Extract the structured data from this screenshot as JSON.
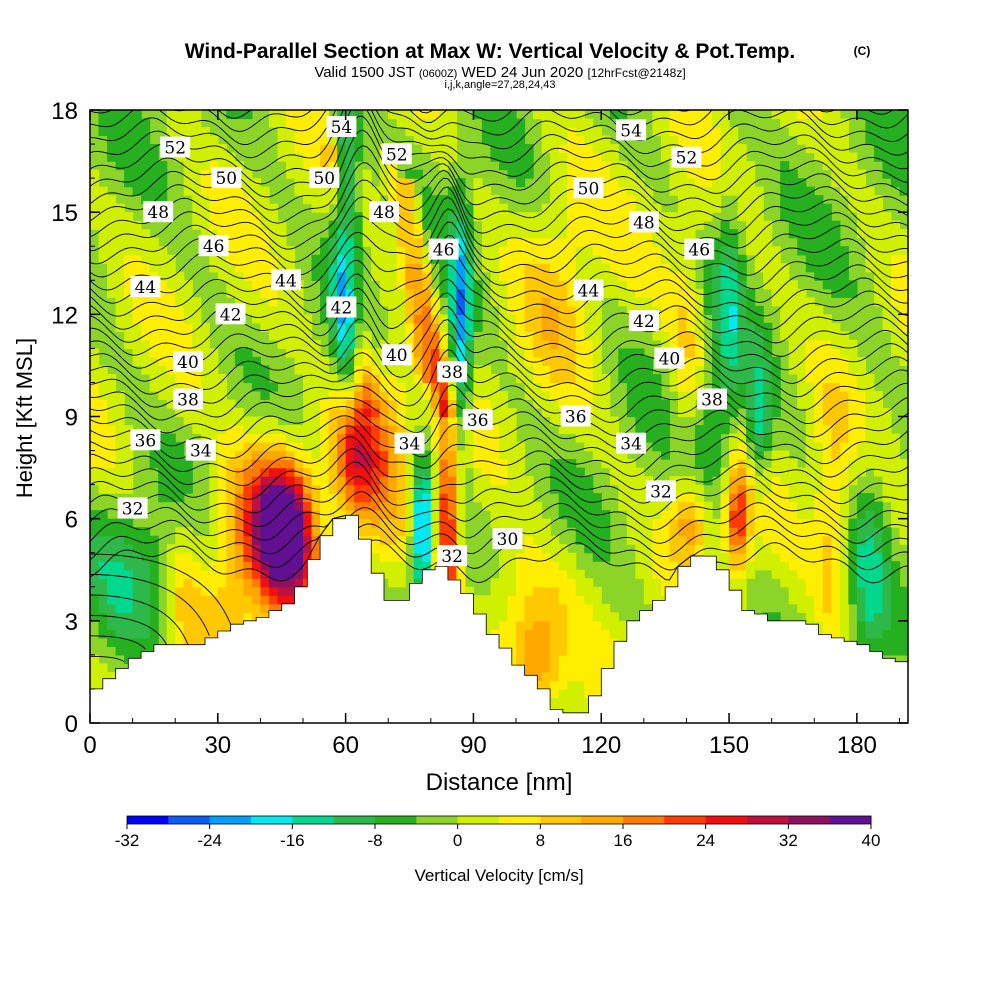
{
  "chart_data": {
    "type": "heatmap",
    "title": "Wind-Parallel Section at Max W: Vertical Velocity & Pot.Temp.",
    "title_mark": "(C)",
    "subtitle": {
      "valid": "Valid 1500 JST ",
      "utc": "(0600Z)",
      "date": " WED 24 Jun 2020 ",
      "forecast": "[12hrFcst@2148z]",
      "indices": "i,j,k,angle=27,28,24,43"
    },
    "xlabel": "Distance [nm]",
    "ylabel": "Height [Kft MSL]",
    "xlim": [
      0,
      192
    ],
    "ylim": [
      0,
      18
    ],
    "xticks": [
      "0",
      "30",
      "60",
      "90",
      "120",
      "150",
      "180"
    ],
    "yticks": [
      "0",
      "3",
      "6",
      "9",
      "12",
      "15",
      "18"
    ],
    "colorbar": {
      "label": "Vertical Velocity [cm/s]",
      "bounds": [
        -32,
        40
      ],
      "tick_labels": [
        "-32",
        "-24",
        "-16",
        "-8",
        "0",
        "8",
        "16",
        "24",
        "32",
        "40"
      ],
      "colors": [
        "#0000ff",
        "#0b5cf6",
        "#00a0ff",
        "#00e8f0",
        "#00d890",
        "#2eb84a",
        "#26b020",
        "#8cd428",
        "#d0f000",
        "#ffee00",
        "#ffc800",
        "#ffa800",
        "#ff7c00",
        "#ff3c00",
        "#f01010",
        "#c01040",
        "#901060",
        "#601090"
      ]
    },
    "series": [
      {
        "name": "Vertical Velocity [cm/s]",
        "note_units": "cm/s",
        "features": [
          {
            "x": 46,
            "y": 5.6,
            "peak": 40
          },
          {
            "x": 62,
            "y": 8.0,
            "peak": 24
          },
          {
            "x": 84,
            "y": 5.8,
            "peak": 28
          },
          {
            "x": 152,
            "y": 6.0,
            "peak": 24
          },
          {
            "x": 78,
            "y": 5.6,
            "peak": -28
          },
          {
            "x": 60,
            "y": 14.2,
            "peak": -22
          },
          {
            "x": 87,
            "y": 11.4,
            "peak": -22
          },
          {
            "x": 157,
            "y": 8.8,
            "peak": -14
          }
        ]
      },
      {
        "name": "Pot.Temp.",
        "contour_levels": [
          30,
          32,
          34,
          36,
          38,
          40,
          42,
          44,
          46,
          48,
          50,
          52,
          54
        ],
        "contour_labels": [
          {
            "text": "32",
            "x": 10,
            "y": 6.3
          },
          {
            "text": "34",
            "x": 26,
            "y": 8.0
          },
          {
            "text": "36",
            "x": 13,
            "y": 8.3
          },
          {
            "text": "38",
            "x": 23,
            "y": 9.5
          },
          {
            "text": "40",
            "x": 23,
            "y": 10.6
          },
          {
            "text": "42",
            "x": 33,
            "y": 12.0
          },
          {
            "text": "44",
            "x": 13,
            "y": 12.8
          },
          {
            "text": "46",
            "x": 29,
            "y": 14.0
          },
          {
            "text": "48",
            "x": 16,
            "y": 15.0
          },
          {
            "text": "50",
            "x": 32,
            "y": 16.0
          },
          {
            "text": "52",
            "x": 20,
            "y": 16.9
          },
          {
            "text": "44",
            "x": 46,
            "y": 13.0
          },
          {
            "text": "42",
            "x": 59,
            "y": 12.2
          },
          {
            "text": "40",
            "x": 72,
            "y": 10.8
          },
          {
            "text": "50",
            "x": 55,
            "y": 16.0
          },
          {
            "text": "54",
            "x": 59,
            "y": 17.5
          },
          {
            "text": "52",
            "x": 72,
            "y": 16.7
          },
          {
            "text": "48",
            "x": 69,
            "y": 15.0
          },
          {
            "text": "46",
            "x": 83,
            "y": 13.9
          },
          {
            "text": "38",
            "x": 85,
            "y": 10.3
          },
          {
            "text": "36",
            "x": 91,
            "y": 8.9
          },
          {
            "text": "34",
            "x": 75,
            "y": 8.2
          },
          {
            "text": "32",
            "x": 85,
            "y": 4.9
          },
          {
            "text": "30",
            "x": 98,
            "y": 5.4
          },
          {
            "text": "54",
            "x": 127,
            "y": 17.4
          },
          {
            "text": "52",
            "x": 140,
            "y": 16.6
          },
          {
            "text": "50",
            "x": 117,
            "y": 15.7
          },
          {
            "text": "48",
            "x": 130,
            "y": 14.7
          },
          {
            "text": "46",
            "x": 143,
            "y": 13.9
          },
          {
            "text": "44",
            "x": 117,
            "y": 12.7
          },
          {
            "text": "42",
            "x": 130,
            "y": 11.8
          },
          {
            "text": "40",
            "x": 136,
            "y": 10.7
          },
          {
            "text": "38",
            "x": 146,
            "y": 9.5
          },
          {
            "text": "36",
            "x": 114,
            "y": 9.0
          },
          {
            "text": "34",
            "x": 127,
            "y": 8.2
          },
          {
            "text": "32",
            "x": 134,
            "y": 6.8
          }
        ]
      },
      {
        "name": "Terrain",
        "x": [
          0,
          3,
          6,
          9,
          12,
          15,
          18,
          21,
          24,
          27,
          30,
          33,
          36,
          39,
          42,
          45,
          48,
          51,
          54,
          57,
          60,
          63,
          66,
          69,
          72,
          75,
          78,
          81,
          84,
          87,
          90,
          93,
          96,
          99,
          102,
          105,
          108,
          111,
          114,
          117,
          120,
          123,
          126,
          129,
          132,
          135,
          138,
          141,
          144,
          147,
          150,
          153,
          156,
          159,
          162,
          165,
          168,
          171,
          174,
          177,
          180,
          183,
          186,
          189,
          192
        ],
        "height": [
          1.0,
          1.3,
          1.6,
          1.9,
          2.1,
          2.3,
          2.3,
          2.3,
          2.3,
          2.5,
          2.7,
          2.9,
          3.0,
          3.1,
          3.3,
          3.5,
          4.0,
          4.8,
          5.5,
          6.0,
          6.1,
          5.4,
          4.4,
          3.6,
          3.6,
          4.1,
          4.5,
          4.6,
          4.2,
          3.8,
          3.2,
          2.6,
          2.2,
          1.7,
          1.4,
          1.0,
          0.4,
          0.3,
          0.3,
          0.8,
          1.6,
          2.4,
          3.0,
          3.3,
          3.6,
          4.0,
          4.6,
          4.9,
          4.9,
          4.5,
          3.9,
          3.3,
          3.2,
          3.0,
          3.0,
          3.0,
          2.9,
          2.6,
          2.5,
          2.4,
          2.3,
          2.1,
          1.9,
          1.8,
          1.6
        ]
      }
    ]
  }
}
